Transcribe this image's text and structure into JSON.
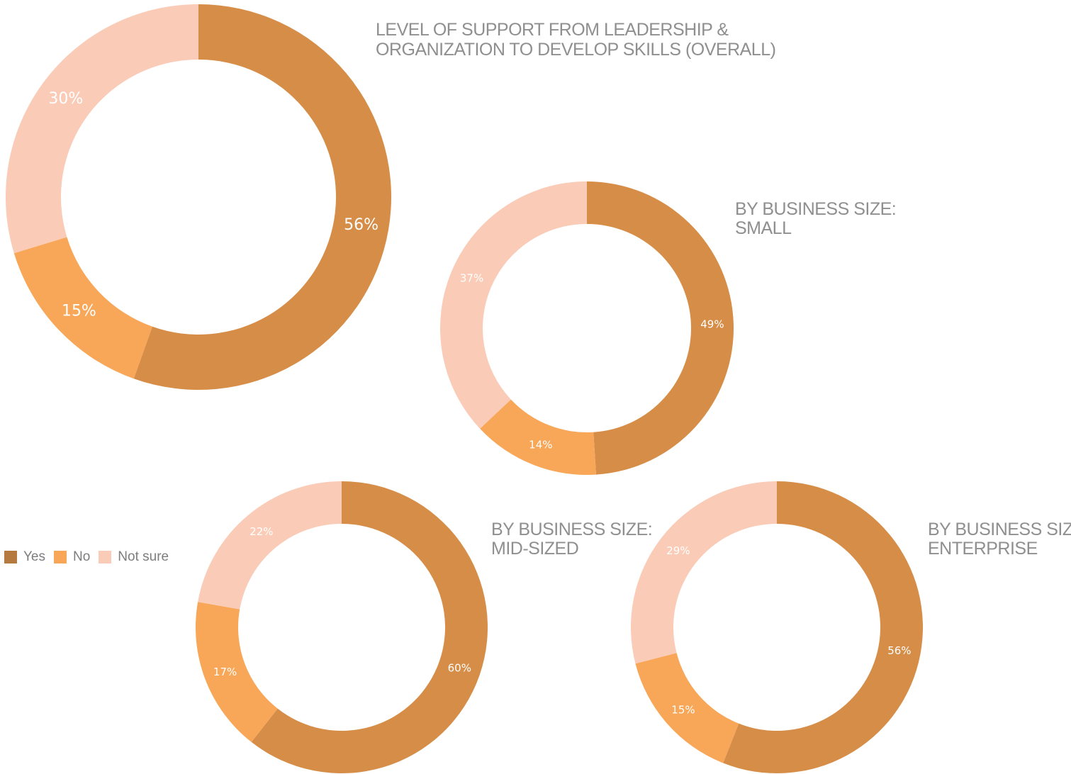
{
  "colors": {
    "yes": "#d68d47",
    "no": "#f8a657",
    "not_sure": "#facbb6"
  },
  "legend": [
    {
      "label": "Yes",
      "color": "#b57a3f"
    },
    {
      "label": "No",
      "color": "#f8a657"
    },
    {
      "label": "Not sure",
      "color": "#facbb6"
    }
  ],
  "chart_data": [
    {
      "type": "pie",
      "title": [
        "LEVEL OF SUPPORT FROM LEADERSHIP  &",
        "ORGANIZATION TO DEVELOP SKILLS (OVERALL)"
      ],
      "categories": [
        "Yes",
        "No",
        "Not sure"
      ],
      "values": [
        56,
        15,
        30
      ],
      "labels": [
        "56%",
        "15%",
        "30%"
      ]
    },
    {
      "type": "pie",
      "title": [
        "BY BUSINESS SIZE:",
        "SMALL"
      ],
      "categories": [
        "Yes",
        "No",
        "Not sure"
      ],
      "values": [
        49,
        14,
        37
      ],
      "labels": [
        "49%",
        "14%",
        "37%"
      ]
    },
    {
      "type": "pie",
      "title": [
        "BY BUSINESS SIZE:",
        "MID-SIZED"
      ],
      "categories": [
        "Yes",
        "No",
        "Not sure"
      ],
      "values": [
        60,
        17,
        22
      ],
      "labels": [
        "60%",
        "17%",
        "22%"
      ]
    },
    {
      "type": "pie",
      "title": [
        "BY BUSINESS SIZE:",
        "ENTERPRISE"
      ],
      "categories": [
        "Yes",
        "No",
        "Not sure"
      ],
      "values": [
        56,
        15,
        29
      ],
      "labels": [
        "56%",
        "15%",
        "29%"
      ]
    }
  ]
}
